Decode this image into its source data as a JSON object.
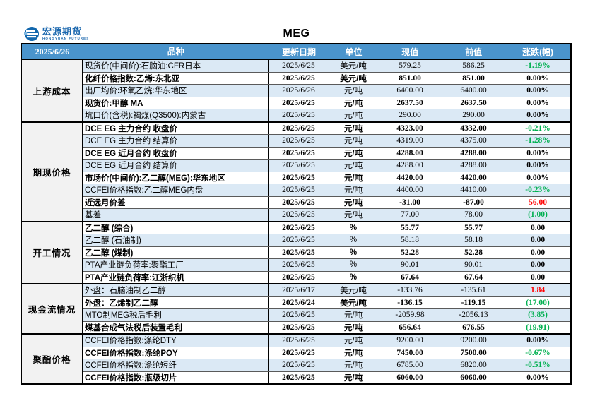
{
  "brand": {
    "name": "宏源期货",
    "subtitle": "HONGYUAN FUTURES"
  },
  "title": "MEG",
  "report_date": "2025/6/26",
  "columns": {
    "variety": "品种",
    "update_date": "更新日期",
    "unit": "单位",
    "current": "现值",
    "previous": "前值",
    "change": "涨跌(幅)"
  },
  "colors": {
    "header_bg": "#4a94cc",
    "row_alt_bg": "#dbe9f5",
    "section_label_bg": "#f2f2f2",
    "change_positive": "#ff0000",
    "change_negative": "#00b050",
    "change_neutral": "#000000",
    "brand_blue": "#1a67ae"
  },
  "sections": [
    {
      "label": "上游成本",
      "rows": [
        {
          "variety": "现货价(中间价):石脑油:CFR日本",
          "date": "2025/6/25",
          "unit": "美元/吨",
          "current": "579.25",
          "previous": "586.25",
          "change": "-1.19%",
          "change_color": "green",
          "bold": false
        },
        {
          "variety": "化纤价格指数:乙烯:东北亚",
          "date": "2025/6/25",
          "unit": "美元/吨",
          "current": "851.00",
          "previous": "851.00",
          "change": "0.00%",
          "change_color": "black",
          "bold": true
        },
        {
          "variety": "出厂均价:环氧乙烷:华东地区",
          "date": "2025/6/26",
          "unit": "元/吨",
          "current": "6400.00",
          "previous": "6400.00",
          "change": "0.00%",
          "change_color": "black",
          "bold": false
        },
        {
          "variety": "现货价:甲醇 MA",
          "date": "2025/6/25",
          "unit": "元/吨",
          "current": "2637.50",
          "previous": "2637.50",
          "change": "0.00%",
          "change_color": "black",
          "bold": true
        },
        {
          "variety": "坑口价(含税):褐煤(Q3500):内蒙古",
          "date": "2025/6/25",
          "unit": "元/吨",
          "current": "290.00",
          "previous": "290.00",
          "change": "0.00%",
          "change_color": "black",
          "bold": false
        }
      ]
    },
    {
      "label": "期现价格",
      "rows": [
        {
          "variety": "DCE EG 主力合约 收盘价",
          "date": "2025/6/25",
          "unit": "元/吨",
          "current": "4323.00",
          "previous": "4332.00",
          "change": "-0.21%",
          "change_color": "green",
          "bold": true
        },
        {
          "variety": "DCE EG 主力合约 结算价",
          "date": "2025/6/25",
          "unit": "元/吨",
          "current": "4319.00",
          "previous": "4375.00",
          "change": "-1.28%",
          "change_color": "green",
          "bold": false
        },
        {
          "variety": "DCE EG 近月合约 收盘价",
          "date": "2025/6/25",
          "unit": "元/吨",
          "current": "4288.00",
          "previous": "4288.00",
          "change": "0.00%",
          "change_color": "black",
          "bold": true
        },
        {
          "variety": "DCE EG 近月合约 结算价",
          "date": "2025/6/25",
          "unit": "元/吨",
          "current": "4288.00",
          "previous": "4288.00",
          "change": "0.00%",
          "change_color": "black",
          "bold": false
        },
        {
          "variety": "市场价(中间价):乙二醇(MEG):华东地区",
          "date": "2025/6/25",
          "unit": "元/吨",
          "current": "4420.00",
          "previous": "4420.00",
          "change": "0.00%",
          "change_color": "black",
          "bold": true
        },
        {
          "variety": "CCFEI价格指数:乙二醇MEG内盘",
          "date": "2025/6/25",
          "unit": "元/吨",
          "current": "4400.00",
          "previous": "4410.00",
          "change": "-0.23%",
          "change_color": "green",
          "bold": false
        },
        {
          "variety": "近远月价差",
          "date": "2025/6/25",
          "unit": "元/吨",
          "current": "-31.00",
          "previous": "-87.00",
          "change": "56.00",
          "change_color": "red",
          "bold": true
        },
        {
          "variety": "基差",
          "date": "2025/6/25",
          "unit": "元/吨",
          "current": "77.00",
          "previous": "78.00",
          "change": "(1.00)",
          "change_color": "green",
          "bold": false
        }
      ]
    },
    {
      "label": "开工情况",
      "rows": [
        {
          "variety": "乙二醇 (综合)",
          "date": "2025/6/25",
          "unit": "%",
          "current": "55.77",
          "previous": "55.77",
          "change": "0.00",
          "change_color": "black",
          "bold": true
        },
        {
          "variety": "乙二醇 (石油制)",
          "date": "2025/6/25",
          "unit": "%",
          "current": "58.18",
          "previous": "58.18",
          "change": "0.00",
          "change_color": "black",
          "bold": false
        },
        {
          "variety": "乙二醇 (煤制)",
          "date": "2025/6/25",
          "unit": "%",
          "current": "52.28",
          "previous": "52.28",
          "change": "0.00",
          "change_color": "black",
          "bold": true
        },
        {
          "variety": "PTA产业链负荷率:聚酯工厂",
          "date": "2025/6/25",
          "unit": "%",
          "current": "90.01",
          "previous": "90.01",
          "change": "0.00",
          "change_color": "black",
          "bold": false
        },
        {
          "variety": "PTA产业链负荷率:江浙织机",
          "date": "2025/6/25",
          "unit": "%",
          "current": "67.64",
          "previous": "67.64",
          "change": "0.00",
          "change_color": "black",
          "bold": true
        }
      ]
    },
    {
      "label": "现金流情况",
      "rows": [
        {
          "variety": "外盘：石脑油制乙二醇",
          "date": "2025/6/17",
          "unit": "美元/吨",
          "current": "-133.76",
          "previous": "-135.61",
          "change": "1.84",
          "change_color": "red",
          "bold": false
        },
        {
          "variety": "外盘：乙烯制乙二醇",
          "date": "2025/6/24",
          "unit": "美元/吨",
          "current": "-136.15",
          "previous": "-119.15",
          "change": "(17.00)",
          "change_color": "green",
          "bold": true
        },
        {
          "variety": "MTO制MEG税后毛利",
          "date": "2025/6/25",
          "unit": "元/吨",
          "current": "-2059.98",
          "previous": "-2056.13",
          "change": "(3.85)",
          "change_color": "green",
          "bold": false
        },
        {
          "variety": "煤基合成气法税后装置毛利",
          "date": "2025/6/25",
          "unit": "元/吨",
          "current": "656.64",
          "previous": "676.55",
          "change": "(19.91)",
          "change_color": "green",
          "bold": true
        }
      ]
    },
    {
      "label": "聚酯价格",
      "rows": [
        {
          "variety": "CCFEI价格指数:涤纶DTY",
          "date": "2025/6/25",
          "unit": "元/吨",
          "current": "9200.00",
          "previous": "9200.00",
          "change": "0.00%",
          "change_color": "black",
          "bold": false
        },
        {
          "variety": "CCFEI价格指数:涤纶POY",
          "date": "2025/6/25",
          "unit": "元/吨",
          "current": "7450.00",
          "previous": "7500.00",
          "change": "-0.67%",
          "change_color": "green",
          "bold": true
        },
        {
          "variety": "CCFEI价格指数:涤纶短纤",
          "date": "2025/6/25",
          "unit": "元/吨",
          "current": "6785.00",
          "previous": "6820.00",
          "change": "-0.51%",
          "change_color": "green",
          "bold": false
        },
        {
          "variety": "CCFEI价格指数:瓶级切片",
          "date": "2025/6/25",
          "unit": "元/吨",
          "current": "6060.00",
          "previous": "6060.00",
          "change": "0.00%",
          "change_color": "black",
          "bold": true
        }
      ]
    }
  ]
}
